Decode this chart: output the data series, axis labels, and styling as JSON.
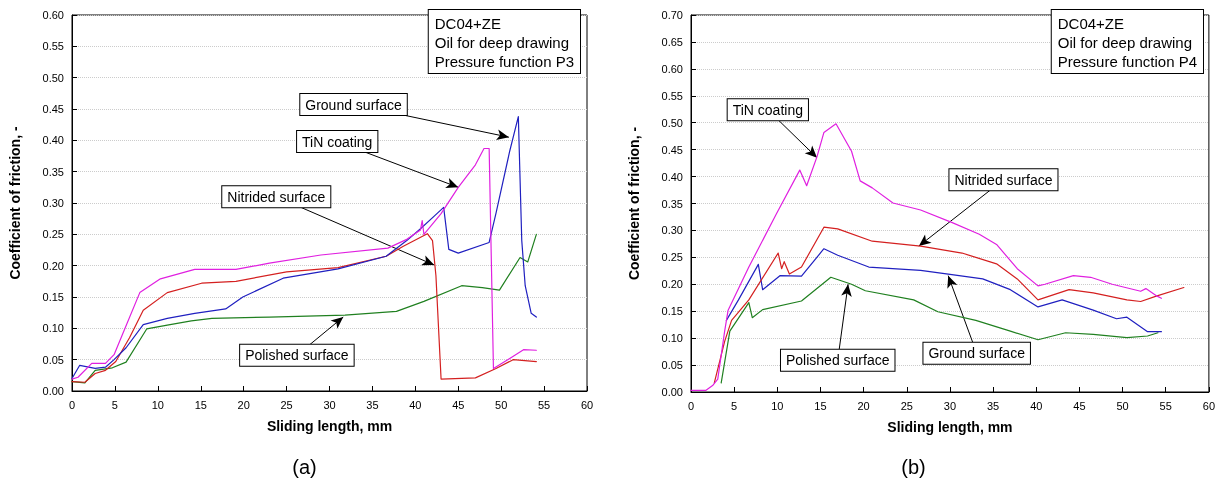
{
  "chart_data": [
    {
      "type": "line",
      "title": "(a)",
      "xlabel": "Sliding length, mm",
      "ylabel": "Coefficient of friction, -",
      "xlim": [
        0,
        60
      ],
      "ylim": [
        0,
        0.6
      ],
      "xticks": [
        0,
        5,
        10,
        15,
        20,
        25,
        30,
        35,
        40,
        45,
        50,
        55,
        60
      ],
      "yticks": [
        {
          "value": 0,
          "label": "0.00"
        },
        {
          "value": 0.05,
          "label": "0.05"
        },
        {
          "value": 0.1,
          "label": "0.10"
        },
        {
          "value": 0.15,
          "label": "0.15"
        },
        {
          "value": 0.2,
          "label": "0.20"
        },
        {
          "value": 0.25,
          "label": "0.25"
        },
        {
          "value": 0.3,
          "label": "0.30"
        },
        {
          "value": 0.35,
          "label": "0.35"
        },
        {
          "value": 0.4,
          "label": "0.40"
        },
        {
          "value": 0.45,
          "label": "0.45"
        },
        {
          "value": 0.5,
          "label": "0.50"
        },
        {
          "value": 0.55,
          "label": "0.55"
        },
        {
          "value": 0.6,
          "label": "0.60"
        }
      ],
      "grid": "y",
      "line_style": "solid",
      "marker": "none",
      "series": [
        {
          "color": "#e020e0",
          "x": [
            0,
            0.7,
            2.3,
            3.9,
            4.9,
            5.9,
            7.9,
            10.3,
            14.3,
            19.1,
            23.0,
            29.0,
            36.8,
            39.0,
            40.6,
            40.8,
            41.0,
            43.0,
            45.0,
            47.0,
            48.0,
            48.6,
            49.1,
            51.0,
            52.6,
            54.1
          ],
          "values": [
            0.019,
            0.022,
            0.044,
            0.044,
            0.058,
            0.091,
            0.157,
            0.179,
            0.194,
            0.194,
            0.204,
            0.217,
            0.228,
            0.242,
            0.257,
            0.272,
            0.25,
            0.283,
            0.325,
            0.361,
            0.387,
            0.387,
            0.036,
            0.052,
            0.066,
            0.065
          ]
        },
        {
          "color": "#2020c0",
          "x": [
            0,
            0.9,
            2.7,
            3.9,
            4.9,
            6.3,
            8.3,
            11.1,
            14.3,
            17.9,
            19.9,
            24.6,
            31.0,
            36.6,
            39.0,
            40.6,
            42.2,
            43.3,
            43.9,
            45.0,
            48.6,
            49.4,
            51.0,
            52.0,
            52.4,
            52.8,
            53.5,
            54.1
          ],
          "values": [
            0.02,
            0.041,
            0.036,
            0.038,
            0.05,
            0.069,
            0.106,
            0.116,
            0.124,
            0.131,
            0.15,
            0.18,
            0.195,
            0.215,
            0.24,
            0.259,
            0.279,
            0.293,
            0.226,
            0.22,
            0.237,
            0.284,
            0.383,
            0.438,
            0.24,
            0.168,
            0.124,
            0.118
          ]
        },
        {
          "color": "#d42020",
          "x": [
            0,
            1.5,
            2.7,
            3.9,
            5.1,
            6.7,
            8.3,
            11.1,
            15.1,
            19.1,
            25.0,
            31.0,
            36.6,
            38.6,
            41.4,
            42.0,
            42.4,
            43.0,
            47.0,
            49.4,
            51.4,
            54.1
          ],
          "values": [
            0.015,
            0.014,
            0.028,
            0.033,
            0.047,
            0.085,
            0.129,
            0.157,
            0.172,
            0.175,
            0.19,
            0.197,
            0.215,
            0.231,
            0.251,
            0.24,
            0.184,
            0.019,
            0.021,
            0.036,
            0.05,
            0.047
          ]
        },
        {
          "color": "#208020",
          "x": [
            0,
            1.5,
            2.7,
            4.7,
            6.3,
            8.7,
            11.1,
            13.9,
            16.3,
            23.0,
            31.8,
            37.8,
            41.0,
            45.4,
            47.8,
            49.8,
            52.2,
            53.1,
            54.1
          ],
          "values": [
            0.015,
            0.013,
            0.033,
            0.037,
            0.046,
            0.099,
            0.105,
            0.112,
            0.116,
            0.118,
            0.121,
            0.127,
            0.143,
            0.168,
            0.165,
            0.161,
            0.213,
            0.206,
            0.25
          ]
        }
      ],
      "annotations": [
        "DC04+ZE\nOil for deep drawing\nPressure function P3",
        {
          "text": "Ground surface",
          "x": 50.9,
          "y": 0.405
        },
        {
          "text": "TiN coating",
          "x": 45.0,
          "y": 0.325
        },
        {
          "text": "Nitrided surface",
          "x": 42.2,
          "y": 0.201
        },
        {
          "text": "Polished surface",
          "x": 31.6,
          "y": 0.118
        }
      ]
    },
    {
      "type": "line",
      "title": "(b)",
      "xlabel": "Sliding length, mm",
      "ylabel": "Coefficient of friction, -",
      "xlim": [
        0,
        60
      ],
      "ylim": [
        0,
        0.7
      ],
      "xticks": [
        0,
        5,
        10,
        15,
        20,
        25,
        30,
        35,
        40,
        45,
        50,
        55,
        60
      ],
      "yticks": [
        {
          "value": 0,
          "label": "0.00"
        },
        {
          "value": 0.05,
          "label": "0.05"
        },
        {
          "value": 0.1,
          "label": "0.10"
        },
        {
          "value": 0.15,
          "label": "0.15"
        },
        {
          "value": 0.2,
          "label": "0.20"
        },
        {
          "value": 0.25,
          "label": "0.25"
        },
        {
          "value": 0.3,
          "label": "0.30"
        },
        {
          "value": 0.35,
          "label": "0.35"
        },
        {
          "value": 0.4,
          "label": "0.40"
        },
        {
          "value": 0.45,
          "label": "0.45"
        },
        {
          "value": 0.5,
          "label": "0.50"
        },
        {
          "value": 0.55,
          "label": "0.55"
        },
        {
          "value": 0.6,
          "label": "0.60"
        },
        {
          "value": 0.65,
          "label": "0.65"
        },
        {
          "value": 0.7,
          "label": "0.70"
        }
      ],
      "grid": "y",
      "line_style": "solid",
      "marker": "none",
      "series": [
        {
          "color": "#e020e0",
          "x": [
            0,
            1.7,
            2.5,
            3.1,
            3.9,
            4.3,
            6.7,
            9.9,
            12.6,
            13.4,
            14.6,
            15.4,
            16.8,
            18.6,
            19.6,
            21.0,
            23.4,
            26.6,
            30.2,
            33.4,
            35.4,
            37.8,
            40.2,
            41.0,
            44.3,
            46.3,
            48.8,
            52.1,
            52.7,
            54.0,
            54.5
          ],
          "values": [
            0.003,
            0.003,
            0.012,
            0.024,
            0.113,
            0.152,
            0.232,
            0.331,
            0.412,
            0.383,
            0.437,
            0.482,
            0.498,
            0.447,
            0.392,
            0.379,
            0.351,
            0.338,
            0.315,
            0.293,
            0.274,
            0.229,
            0.197,
            0.2,
            0.216,
            0.213,
            0.2,
            0.187,
            0.192,
            0.178,
            0.174
          ]
        },
        {
          "color": "#d42020",
          "x": [
            2.7,
            3.9,
            4.7,
            6.7,
            10.1,
            10.5,
            10.8,
            11.4,
            12.8,
            15.4,
            17.0,
            21.0,
            26.6,
            31.4,
            35.4,
            37.8,
            40.2,
            43.8,
            46.6,
            50.5,
            52.1,
            53.9,
            57.1
          ],
          "values": [
            0.017,
            0.094,
            0.133,
            0.171,
            0.258,
            0.229,
            0.242,
            0.219,
            0.232,
            0.306,
            0.303,
            0.28,
            0.271,
            0.258,
            0.238,
            0.21,
            0.171,
            0.19,
            0.184,
            0.171,
            0.168,
            0.178,
            0.194
          ]
        },
        {
          "color": "#2020c0",
          "x": [
            4.1,
            5.5,
            7.8,
            8.3,
            10.3,
            12.8,
            15.4,
            17.0,
            20.6,
            26.6,
            29.8,
            33.8,
            37.0,
            40.2,
            43.0,
            46.6,
            49.3,
            50.5,
            52.9,
            54.5
          ],
          "values": [
            0.133,
            0.171,
            0.237,
            0.19,
            0.216,
            0.215,
            0.266,
            0.254,
            0.232,
            0.226,
            0.219,
            0.21,
            0.19,
            0.158,
            0.171,
            0.152,
            0.136,
            0.139,
            0.112,
            0.112
          ]
        },
        {
          "color": "#208020",
          "x": [
            3.5,
            4.5,
            6.7,
            7.1,
            8.3,
            12.8,
            16.2,
            18.6,
            20.2,
            25.8,
            28.6,
            33.0,
            37.0,
            40.2,
            43.4,
            46.6,
            50.5,
            52.9,
            54.1
          ],
          "values": [
            0.017,
            0.113,
            0.166,
            0.138,
            0.153,
            0.169,
            0.213,
            0.2,
            0.188,
            0.171,
            0.149,
            0.133,
            0.113,
            0.097,
            0.11,
            0.107,
            0.101,
            0.104,
            0.11
          ]
        }
      ],
      "annotations": [
        "DC04+ZE\nOil for deep drawing\nPressure function P4",
        {
          "text": "TiN coating",
          "x": 14.6,
          "y": 0.435
        },
        {
          "text": "Nitrided surface",
          "x": 26.4,
          "y": 0.271
        },
        {
          "text": "Polished surface",
          "x": 18.2,
          "y": 0.2
        },
        {
          "text": "Ground surface",
          "x": 29.8,
          "y": 0.216
        }
      ]
    }
  ]
}
